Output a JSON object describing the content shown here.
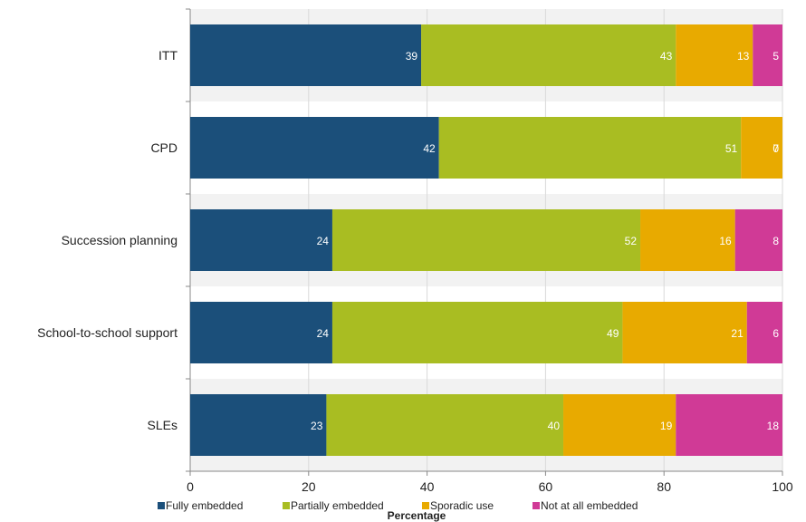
{
  "chart_data": {
    "type": "bar",
    "orientation": "horizontal",
    "stacked": true,
    "categories": [
      "ITT",
      "CPD",
      "Succession planning",
      "School-to-school support",
      "SLEs"
    ],
    "series": [
      {
        "name": "Fully embedded",
        "color": "#1b4f7a",
        "values": [
          39,
          42,
          24,
          24,
          23
        ]
      },
      {
        "name": "Partially embedded",
        "color": "#a9bd22",
        "values": [
          43,
          51,
          52,
          49,
          40
        ]
      },
      {
        "name": "Sporadic use",
        "color": "#e8aa00",
        "values": [
          13,
          7,
          16,
          21,
          19
        ]
      },
      {
        "name": "Not at all embedded",
        "color": "#d03a96",
        "values": [
          5,
          0,
          8,
          6,
          18
        ]
      }
    ],
    "xlabel": "Percentage",
    "ylabel": "",
    "xlim": [
      0,
      100
    ],
    "xticks": [
      0,
      20,
      40,
      60,
      80,
      100
    ],
    "grid": "vertical",
    "legend_position": "bottom",
    "band_colors": [
      "#f2f2f2",
      "#ffffff"
    ]
  }
}
